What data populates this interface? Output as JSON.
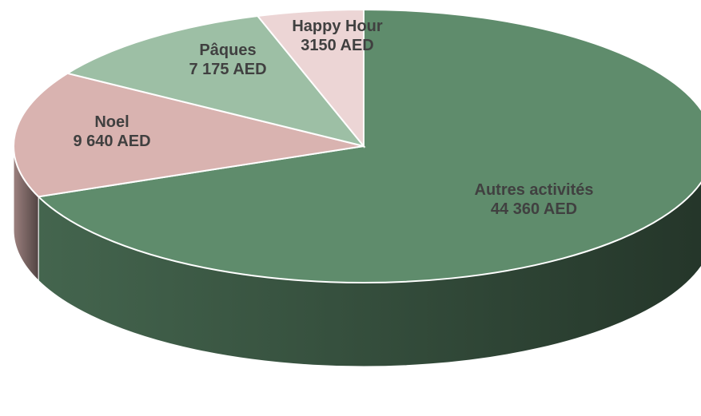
{
  "chart_data": {
    "type": "pie",
    "categories": [
      "Autres activités",
      "Noel",
      "Pâques",
      "Happy Hour"
    ],
    "values": [
      44360,
      9640,
      7175,
      3150
    ],
    "value_labels": [
      "44 360 AED",
      "9 640 AED",
      "7 175 AED",
      "3150 AED"
    ],
    "colors": [
      "#5f8c6c",
      "#d9b3b0",
      "#9dbfa5",
      "#ecd5d5"
    ]
  }
}
